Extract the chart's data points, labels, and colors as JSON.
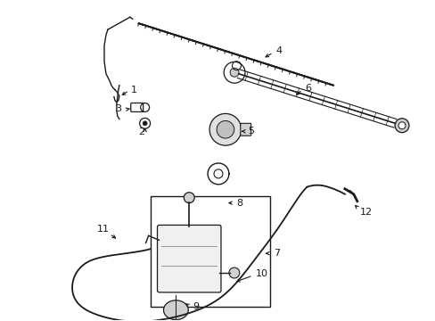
{
  "bg_color": "#ffffff",
  "fig_width": 4.89,
  "fig_height": 3.6,
  "dpi": 100,
  "dark": "#1a1a1a",
  "gray": "#888888",
  "light_gray": "#cccccc"
}
